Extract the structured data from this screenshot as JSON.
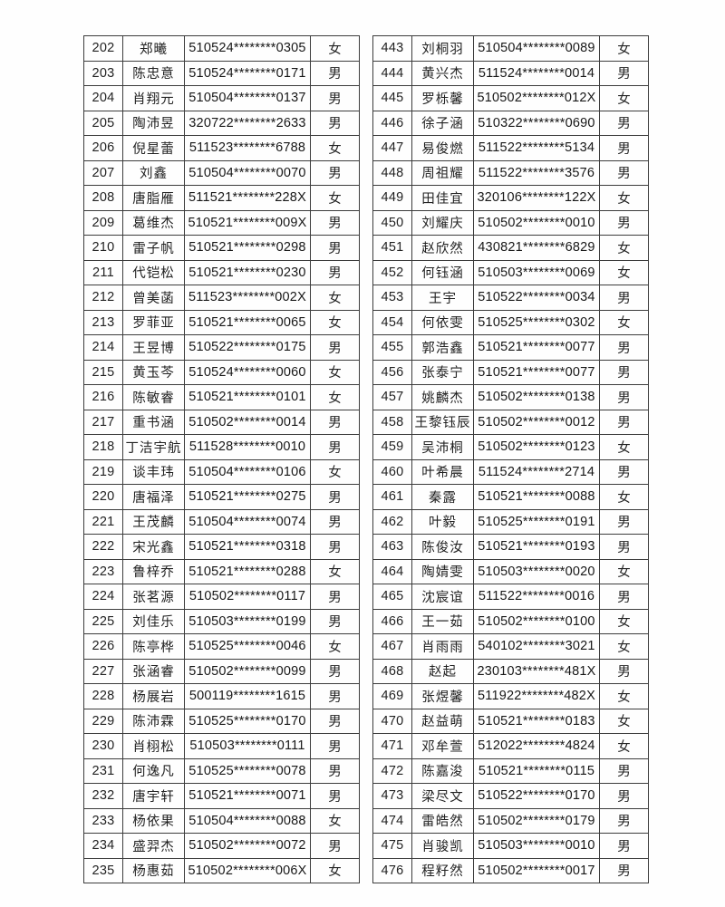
{
  "document": {
    "type": "name-roster-list",
    "column_keys": [
      "no",
      "name",
      "id",
      "gender"
    ],
    "text_color": "#1a1a1a",
    "border_color": "#3c3c3c",
    "background_color": "#fefefe"
  },
  "tables": [
    {
      "rows": [
        {
          "no": "202",
          "name": "郑曦",
          "id": "510524********0305",
          "gender": "女"
        },
        {
          "no": "203",
          "name": "陈忠意",
          "id": "510524********0171",
          "gender": "男"
        },
        {
          "no": "204",
          "name": "肖翔元",
          "id": "510504********0137",
          "gender": "男"
        },
        {
          "no": "205",
          "name": "陶沛昱",
          "id": "320722********2633",
          "gender": "男"
        },
        {
          "no": "206",
          "name": "倪星蕾",
          "id": "511523********6788",
          "gender": "女"
        },
        {
          "no": "207",
          "name": "刘鑫",
          "id": "510504********0070",
          "gender": "男"
        },
        {
          "no": "208",
          "name": "唐脂雁",
          "id": "511521********228X",
          "gender": "女"
        },
        {
          "no": "209",
          "name": "葛维杰",
          "id": "510521********009X",
          "gender": "男"
        },
        {
          "no": "210",
          "name": "雷子帆",
          "id": "510521********0298",
          "gender": "男"
        },
        {
          "no": "211",
          "name": "代铠松",
          "id": "510521********0230",
          "gender": "男"
        },
        {
          "no": "212",
          "name": "曾美菡",
          "id": "511523********002X",
          "gender": "女"
        },
        {
          "no": "213",
          "name": "罗菲亚",
          "id": "510521********0065",
          "gender": "女"
        },
        {
          "no": "214",
          "name": "王昱博",
          "id": "510522********0175",
          "gender": "男"
        },
        {
          "no": "215",
          "name": "黄玉芩",
          "id": "510524********0060",
          "gender": "女"
        },
        {
          "no": "216",
          "name": "陈敏睿",
          "id": "510521********0101",
          "gender": "女"
        },
        {
          "no": "217",
          "name": "重书涵",
          "id": "510502********0014",
          "gender": "男"
        },
        {
          "no": "218",
          "name": "丁洁宇航",
          "id": "511528********0010",
          "gender": "男"
        },
        {
          "no": "219",
          "name": "谈丰玮",
          "id": "510504********0106",
          "gender": "女"
        },
        {
          "no": "220",
          "name": "唐福泽",
          "id": "510521********0275",
          "gender": "男"
        },
        {
          "no": "221",
          "name": "王茂麟",
          "id": "510504********0074",
          "gender": "男"
        },
        {
          "no": "222",
          "name": "宋光鑫",
          "id": "510521********0318",
          "gender": "男"
        },
        {
          "no": "223",
          "name": "鲁梓乔",
          "id": "510521********0288",
          "gender": "女"
        },
        {
          "no": "224",
          "name": "张茗源",
          "id": "510502********0117",
          "gender": "男"
        },
        {
          "no": "225",
          "name": "刘佳乐",
          "id": "510503********0199",
          "gender": "男"
        },
        {
          "no": "226",
          "name": "陈亭桦",
          "id": "510525********0046",
          "gender": "女"
        },
        {
          "no": "227",
          "name": "张涵睿",
          "id": "510502********0099",
          "gender": "男"
        },
        {
          "no": "228",
          "name": "杨展岩",
          "id": "500119********1615",
          "gender": "男"
        },
        {
          "no": "229",
          "name": "陈沛霖",
          "id": "510525********0170",
          "gender": "男"
        },
        {
          "no": "230",
          "name": "肖栩松",
          "id": "510503********0111",
          "gender": "男"
        },
        {
          "no": "231",
          "name": "何逸凡",
          "id": "510525********0078",
          "gender": "男"
        },
        {
          "no": "232",
          "name": "唐宇轩",
          "id": "510521********0071",
          "gender": "男"
        },
        {
          "no": "233",
          "name": "杨依果",
          "id": "510504********0088",
          "gender": "女"
        },
        {
          "no": "234",
          "name": "盛羿杰",
          "id": "510502********0072",
          "gender": "男"
        },
        {
          "no": "235",
          "name": "杨惠茹",
          "id": "510502********006X",
          "gender": "女"
        }
      ]
    },
    {
      "rows": [
        {
          "no": "443",
          "name": "刘桐羽",
          "id": "510504********0089",
          "gender": "女"
        },
        {
          "no": "444",
          "name": "黄兴杰",
          "id": "511524********0014",
          "gender": "男"
        },
        {
          "no": "445",
          "name": "罗栎馨",
          "id": "510502********012X",
          "gender": "女"
        },
        {
          "no": "446",
          "name": "徐子涵",
          "id": "510322********0690",
          "gender": "男"
        },
        {
          "no": "447",
          "name": "易俊燃",
          "id": "511522********5134",
          "gender": "男"
        },
        {
          "no": "448",
          "name": "周祖耀",
          "id": "511522********3576",
          "gender": "男"
        },
        {
          "no": "449",
          "name": "田佳宜",
          "id": "320106********122X",
          "gender": "女"
        },
        {
          "no": "450",
          "name": "刘耀庆",
          "id": "510502********0010",
          "gender": "男"
        },
        {
          "no": "451",
          "name": "赵欣然",
          "id": "430821********6829",
          "gender": "女"
        },
        {
          "no": "452",
          "name": "何钰涵",
          "id": "510503********0069",
          "gender": "女"
        },
        {
          "no": "453",
          "name": "王宇",
          "id": "510522********0034",
          "gender": "男"
        },
        {
          "no": "454",
          "name": "何依雯",
          "id": "510525********0302",
          "gender": "女"
        },
        {
          "no": "455",
          "name": "郭浩鑫",
          "id": "510521********0077",
          "gender": "男"
        },
        {
          "no": "456",
          "name": "张泰宁",
          "id": "510521********0077",
          "gender": "男"
        },
        {
          "no": "457",
          "name": "姚麟杰",
          "id": "510502********0138",
          "gender": "男"
        },
        {
          "no": "458",
          "name": "王黎钰辰",
          "id": "510502********0012",
          "gender": "男"
        },
        {
          "no": "459",
          "name": "吴沛桐",
          "id": "510502********0123",
          "gender": "女"
        },
        {
          "no": "460",
          "name": "叶希晨",
          "id": "511524********2714",
          "gender": "男"
        },
        {
          "no": "461",
          "name": "秦露",
          "id": "510521********0088",
          "gender": "女"
        },
        {
          "no": "462",
          "name": "叶毅",
          "id": "510525********0191",
          "gender": "男"
        },
        {
          "no": "463",
          "name": "陈俊汝",
          "id": "510521********0193",
          "gender": "男"
        },
        {
          "no": "464",
          "name": "陶婧雯",
          "id": "510503********0020",
          "gender": "女"
        },
        {
          "no": "465",
          "name": "沈宸谊",
          "id": "511522********0016",
          "gender": "男"
        },
        {
          "no": "466",
          "name": "王一茹",
          "id": "510502********0100",
          "gender": "女"
        },
        {
          "no": "467",
          "name": "肖雨雨",
          "id": "540102********3021",
          "gender": "女"
        },
        {
          "no": "468",
          "name": "赵起",
          "id": "230103********481X",
          "gender": "男"
        },
        {
          "no": "469",
          "name": "张煜馨",
          "id": "511922********482X",
          "gender": "女"
        },
        {
          "no": "470",
          "name": "赵益萌",
          "id": "510521********0183",
          "gender": "女"
        },
        {
          "no": "471",
          "name": "邓牟萱",
          "id": "512022********4824",
          "gender": "女"
        },
        {
          "no": "472",
          "name": "陈嘉浚",
          "id": "510521********0115",
          "gender": "男"
        },
        {
          "no": "473",
          "name": "梁尽文",
          "id": "510522********0170",
          "gender": "男"
        },
        {
          "no": "474",
          "name": "雷皓然",
          "id": "510502********0179",
          "gender": "男"
        },
        {
          "no": "475",
          "name": "肖骏凯",
          "id": "510503********0010",
          "gender": "男"
        },
        {
          "no": "476",
          "name": "程籽然",
          "id": "510502********0017",
          "gender": "男"
        }
      ]
    }
  ]
}
